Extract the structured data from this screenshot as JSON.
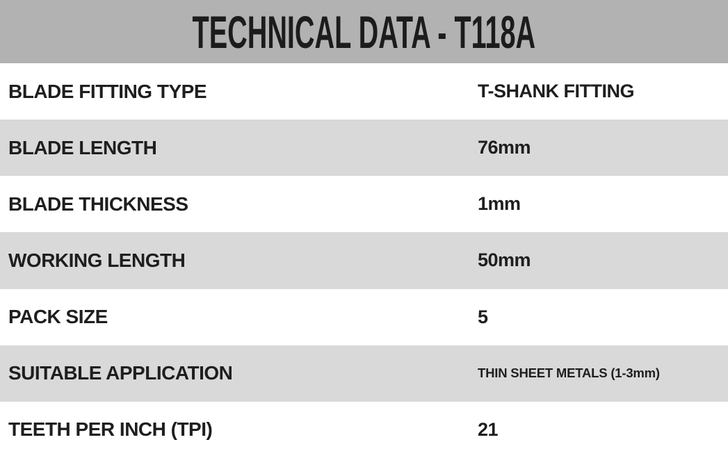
{
  "header": {
    "title": "TECHNICAL DATA - T118A"
  },
  "table": {
    "rows": [
      {
        "label": "BLADE FITTING TYPE",
        "value": "T-SHANK FITTING",
        "small_value": false,
        "shaded": false
      },
      {
        "label": "BLADE LENGTH",
        "value": "76mm",
        "small_value": false,
        "shaded": true
      },
      {
        "label": "BLADE THICKNESS",
        "value": "1mm",
        "small_value": false,
        "shaded": false
      },
      {
        "label": "WORKING LENGTH",
        "value": "50mm",
        "small_value": false,
        "shaded": true
      },
      {
        "label": "PACK SIZE",
        "value": "5",
        "small_value": false,
        "shaded": false
      },
      {
        "label": "SUITABLE APPLICATION",
        "value": "THIN SHEET METALS (1-3mm)",
        "small_value": true,
        "shaded": true
      },
      {
        "label": "TEETH PER INCH (TPI)",
        "value": "21",
        "small_value": false,
        "shaded": false
      }
    ]
  },
  "colors": {
    "header_bg": "#b2b2b2",
    "row_alt_bg": "#d9d9d9",
    "text": "#1e1e1e"
  }
}
